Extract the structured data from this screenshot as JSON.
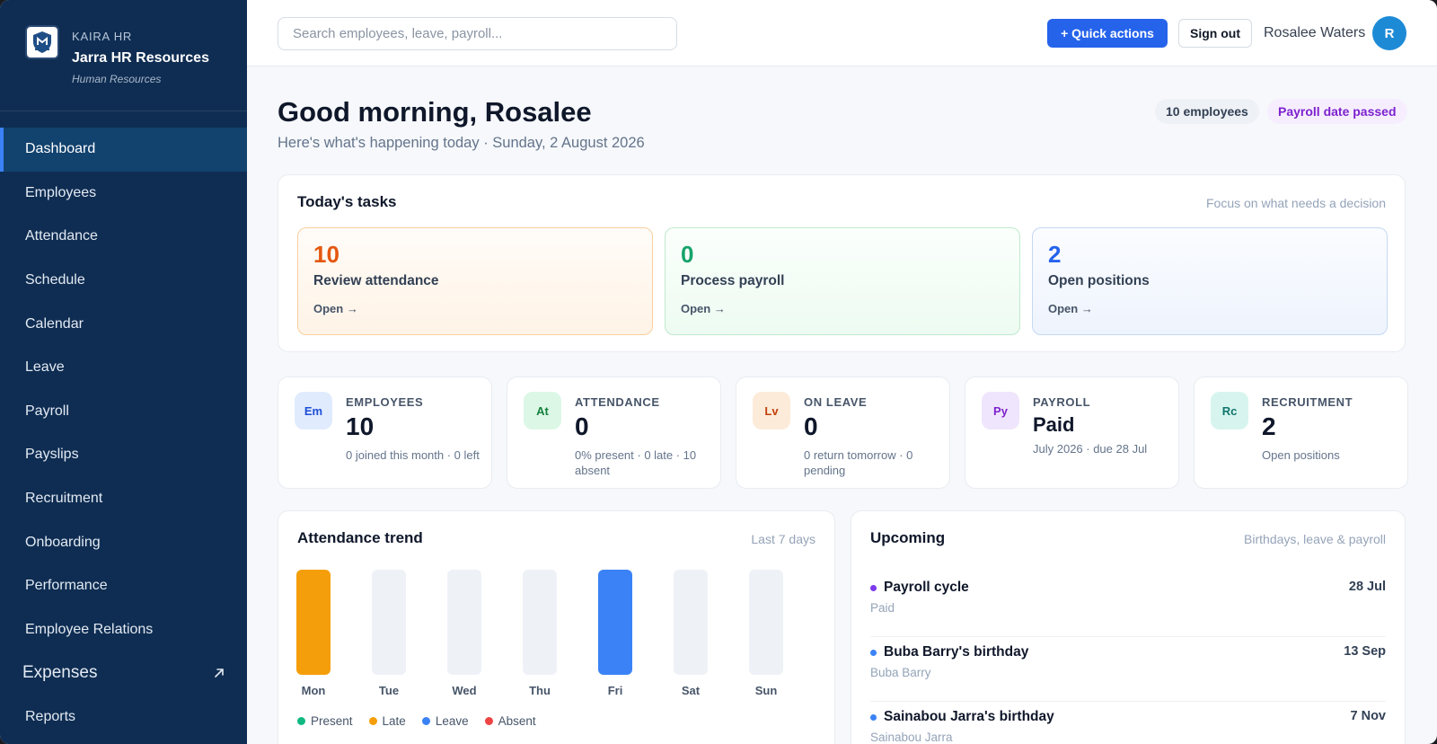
{
  "brand": {
    "kicker": "KAIRA HR",
    "name": "Jarra HR Resources",
    "subtitle": "Human Resources"
  },
  "nav": {
    "items": [
      {
        "label": "Dashboard"
      },
      {
        "label": "Employees"
      },
      {
        "label": "Attendance"
      },
      {
        "label": "Schedule"
      },
      {
        "label": "Calendar"
      },
      {
        "label": "Leave"
      },
      {
        "label": "Payroll"
      },
      {
        "label": "Payslips"
      },
      {
        "label": "Recruitment"
      },
      {
        "label": "Onboarding"
      },
      {
        "label": "Performance"
      },
      {
        "label": "Employee Relations"
      },
      {
        "label": "Expenses"
      },
      {
        "label": "Reports"
      }
    ],
    "active": "Dashboard",
    "expandable": "Expenses"
  },
  "topbar": {
    "search_placeholder": "Search employees, leave, payroll...",
    "quick_actions": "+ Quick actions",
    "sign_out": "Sign out",
    "user_name": "Rosalee Waters",
    "avatar_initial": "R"
  },
  "header": {
    "greeting": "Good morning, Rosalee",
    "subline": "Here's what's happening today · Sunday, 2 August 2026",
    "employee_count": "10 employees",
    "payroll_status": "Payroll date passed"
  },
  "tasks": {
    "title": "Today's tasks",
    "hint": "Focus on what needs a decision",
    "items": [
      {
        "count": "10",
        "label": "Review attendance",
        "link": "Open →"
      },
      {
        "count": "0",
        "label": "Process payroll",
        "link": "Open →"
      },
      {
        "count": "2",
        "label": "Open positions",
        "link": "Open →"
      }
    ]
  },
  "stats": [
    {
      "badge": "Em",
      "kicker": "EMPLOYEES",
      "value": "10",
      "meta": "0 joined this month · 0 left"
    },
    {
      "badge": "At",
      "kicker": "ATTENDANCE",
      "value": "0",
      "meta": "0% present · 0 late · 10 absent"
    },
    {
      "badge": "Lv",
      "kicker": "ON LEAVE",
      "value": "0",
      "meta": "0 return tomorrow · 0 pending"
    },
    {
      "badge": "Py",
      "kicker": "PAYROLL",
      "value": "Paid",
      "meta": "July 2026 · due 28 Jul"
    },
    {
      "badge": "Rc",
      "kicker": "RECRUITMENT",
      "value": "2",
      "meta": "Open positions"
    }
  ],
  "colors": {
    "accent": "#2563eb",
    "sidebar": "#0f2d52",
    "present": "#10b981",
    "late": "#f59e0b",
    "leave": "#3b82f6",
    "absent": "#ef4444",
    "empty_bar": "#eef2f7"
  },
  "trend": {
    "title": "Attendance trend",
    "hint": "Last 7 days"
  },
  "chart_data": {
    "type": "bar",
    "categories": [
      "Mon",
      "Tue",
      "Wed",
      "Thu",
      "Fri",
      "Sat",
      "Sun"
    ],
    "bar_status": [
      "Late",
      "none",
      "none",
      "none",
      "Leave",
      "none",
      "none"
    ],
    "legend": [
      "Present",
      "Late",
      "Leave",
      "Absent"
    ],
    "legend_position": "bottom-left",
    "grid": false
  },
  "upcoming": {
    "title": "Upcoming",
    "hint": "Birthdays, leave & payroll",
    "items": [
      {
        "title": "Payroll cycle",
        "sub": "Paid",
        "date": "28 Jul",
        "dot": "#7c3aed"
      },
      {
        "title": "Buba Barry's birthday",
        "sub": "Buba Barry",
        "date": "13 Sep",
        "dot": "#3b82f6"
      },
      {
        "title": "Sainabou Jarra's birthday",
        "sub": "Sainabou Jarra",
        "date": "7 Nov",
        "dot": "#3b82f6"
      }
    ]
  }
}
